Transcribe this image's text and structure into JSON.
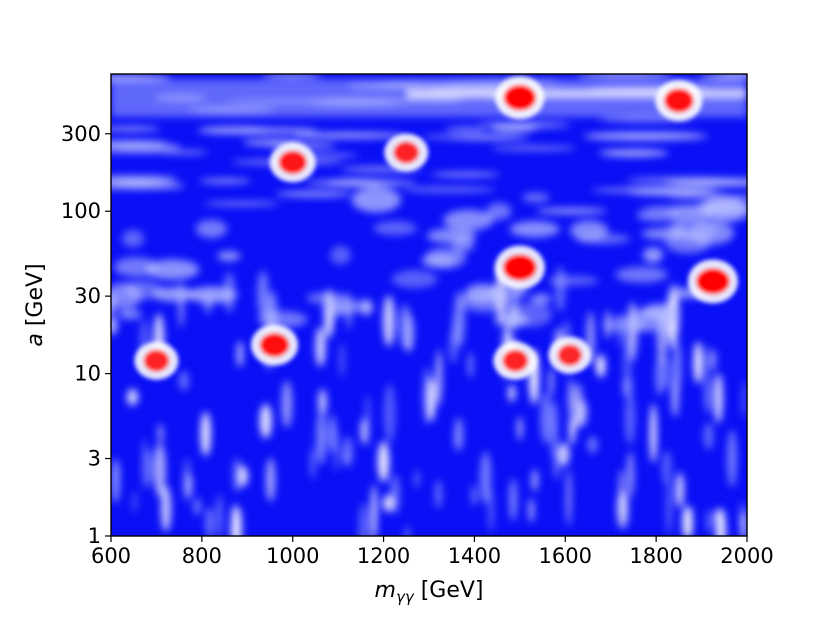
{
  "chart_data": {
    "type": "heatmap",
    "title": "",
    "xlabel_main": "m",
    "xlabel_sub": "γγ",
    "xlabel_unit": " [GeV]",
    "ylabel_main": "a",
    "ylabel_unit": " [GeV]",
    "xlim": [
      600,
      2000
    ],
    "ylim": [
      1,
      700
    ],
    "yscale": "log",
    "x_ticks": [
      600,
      800,
      1000,
      1200,
      1400,
      1600,
      1800,
      2000
    ],
    "x_tick_labels": [
      "600",
      "800",
      "1000",
      "1200",
      "1400",
      "1600",
      "1800",
      "2000"
    ],
    "y_ticks": [
      1,
      3,
      10,
      30,
      100,
      300
    ],
    "y_tick_labels": [
      "1",
      "3",
      "10",
      "30",
      "100",
      "300"
    ],
    "colormap": {
      "low": "#0000ff",
      "mid": "#ffffff",
      "high": "#ff0000"
    },
    "grid": false,
    "hotspots": [
      {
        "x": 1500,
        "y": 45,
        "intensity": 1.0
      },
      {
        "x": 1925,
        "y": 37,
        "intensity": 1.0
      },
      {
        "x": 960,
        "y": 15,
        "intensity": 0.85
      },
      {
        "x": 1000,
        "y": 200,
        "intensity": 0.8
      },
      {
        "x": 1500,
        "y": 500,
        "intensity": 0.95
      },
      {
        "x": 1850,
        "y": 480,
        "intensity": 0.85
      },
      {
        "x": 1250,
        "y": 230,
        "intensity": 0.7
      },
      {
        "x": 700,
        "y": 12,
        "intensity": 0.7
      },
      {
        "x": 1490,
        "y": 12,
        "intensity": 0.7
      },
      {
        "x": 1610,
        "y": 13,
        "intensity": 0.65
      }
    ]
  }
}
